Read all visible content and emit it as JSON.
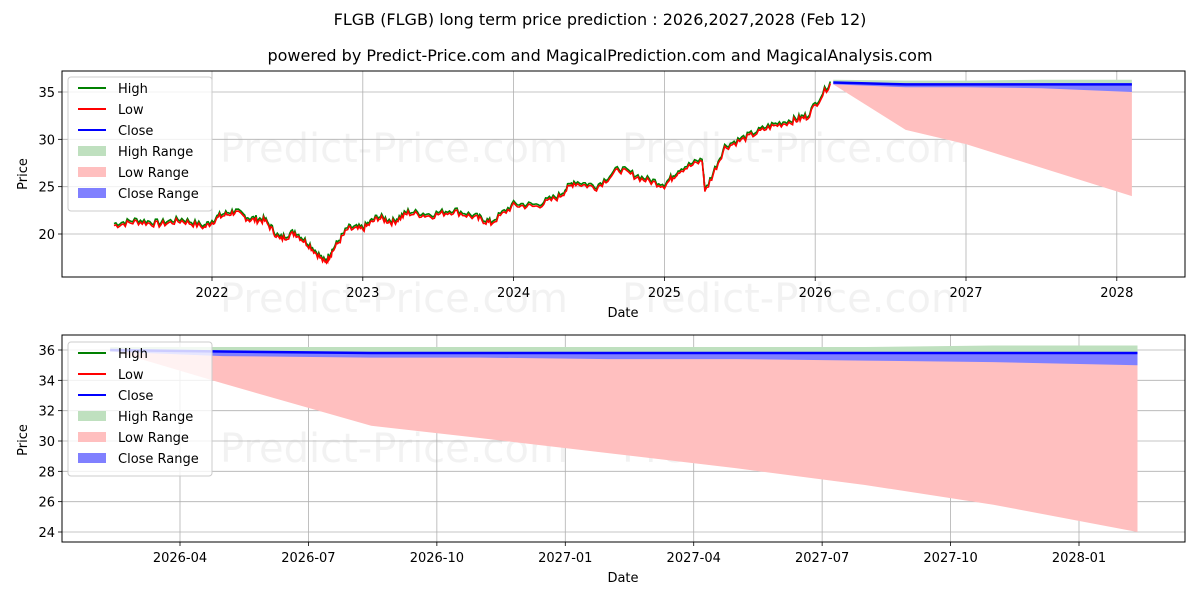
{
  "title": "FLGB (FLGB) long term price prediction : 2026,2027,2028 (Feb 12)",
  "subtitle": "powered by Predict-Price.com and MagicalPrediction.com and MagicalAnalysis.com",
  "watermark": "Predict-Price.com",
  "colors": {
    "high": "#008000",
    "low": "#ff0000",
    "close": "#0000ff",
    "high_range": "#bfe0bf",
    "low_range": "#ffbfbf",
    "close_range": "#8080ff",
    "grid": "#b0b0b0"
  },
  "legend": [
    {
      "label": "High",
      "kind": "line",
      "color": "#008000"
    },
    {
      "label": "Low",
      "kind": "line",
      "color": "#ff0000"
    },
    {
      "label": "Close",
      "kind": "line",
      "color": "#0000ff"
    },
    {
      "label": "High Range",
      "kind": "patch",
      "color": "#bfe0bf"
    },
    {
      "label": "Low Range",
      "kind": "patch",
      "color": "#ffbfbf"
    },
    {
      "label": "Close Range",
      "kind": "patch",
      "color": "#8080ff"
    }
  ],
  "chart_data": [
    {
      "type": "line",
      "title": "FLGB (FLGB) long term price prediction : 2026,2027,2028 (Feb 12)",
      "xlabel": "Date",
      "ylabel": "Price",
      "x_ticks": [
        "2022",
        "2023",
        "2024",
        "2025",
        "2026",
        "2027",
        "2028"
      ],
      "y_ticks": [
        20,
        25,
        30,
        35
      ],
      "ylim": [
        15.5,
        37.3
      ],
      "grid": true,
      "legend_position": "upper left",
      "historical": {
        "x": [
          2021.35,
          2021.5,
          2021.65,
          2021.8,
          2021.95,
          2022.05,
          2022.15,
          2022.25,
          2022.35,
          2022.45,
          2022.55,
          2022.65,
          2022.75,
          2022.8,
          2022.9,
          2023.0,
          2023.1,
          2023.2,
          2023.3,
          2023.45,
          2023.6,
          2023.75,
          2023.85,
          2024.0,
          2024.15,
          2024.3,
          2024.4,
          2024.55,
          2024.7,
          2024.85,
          2025.0,
          2025.1,
          2025.25,
          2025.27,
          2025.4,
          2025.55,
          2025.7,
          2025.85,
          2025.95,
          2026.1
        ],
        "close": [
          21.0,
          21.4,
          21.1,
          21.5,
          20.8,
          21.9,
          22.4,
          21.6,
          21.5,
          19.5,
          20.2,
          18.8,
          17.0,
          18.3,
          20.6,
          20.6,
          21.8,
          21.3,
          22.3,
          22.0,
          22.5,
          21.8,
          21.2,
          23.1,
          23.0,
          24.0,
          25.5,
          25.0,
          26.9,
          25.9,
          25.2,
          26.8,
          27.8,
          24.5,
          29.2,
          30.3,
          31.4,
          32.0,
          32.5,
          36.0
        ]
      },
      "forecast": {
        "x": [
          2026.12,
          2026.6,
          2027.0,
          2027.5,
          2028.1
        ],
        "high_upper": [
          36.3,
          36.2,
          36.2,
          36.3,
          36.3
        ],
        "close": [
          36.0,
          35.8,
          35.8,
          35.8,
          35.8
        ],
        "close_lower": [
          35.8,
          35.5,
          35.5,
          35.4,
          35.0
        ],
        "low_lower": [
          35.8,
          31.0,
          29.5,
          27.0,
          24.0
        ]
      }
    },
    {
      "type": "area",
      "title": "",
      "xlabel": "Date",
      "ylabel": "Price",
      "x_ticks": [
        "2026-04",
        "2026-07",
        "2026-10",
        "2027-01",
        "2027-04",
        "2027-07",
        "2027-10",
        "2028-01"
      ],
      "y_ticks": [
        24,
        26,
        28,
        30,
        32,
        34,
        36
      ],
      "ylim": [
        23.4,
        37.0
      ],
      "grid": true,
      "legend_position": "upper left",
      "forecast": {
        "x": [
          "2026-02-12",
          "2026-05-01",
          "2026-08-15",
          "2026-11-01",
          "2027-02-01",
          "2027-05-01",
          "2027-08-01",
          "2027-11-01",
          "2028-02-12"
        ],
        "high_upper": [
          36.2,
          36.2,
          36.2,
          36.2,
          36.2,
          36.2,
          36.2,
          36.3,
          36.3
        ],
        "close": [
          36.0,
          35.9,
          35.8,
          35.8,
          35.8,
          35.8,
          35.8,
          35.8,
          35.8
        ],
        "close_lower": [
          35.9,
          35.6,
          35.5,
          35.5,
          35.4,
          35.4,
          35.3,
          35.2,
          35.0
        ],
        "low_lower": [
          36.0,
          33.8,
          31.0,
          30.2,
          29.2,
          28.2,
          27.1,
          25.8,
          24.0
        ]
      }
    }
  ]
}
